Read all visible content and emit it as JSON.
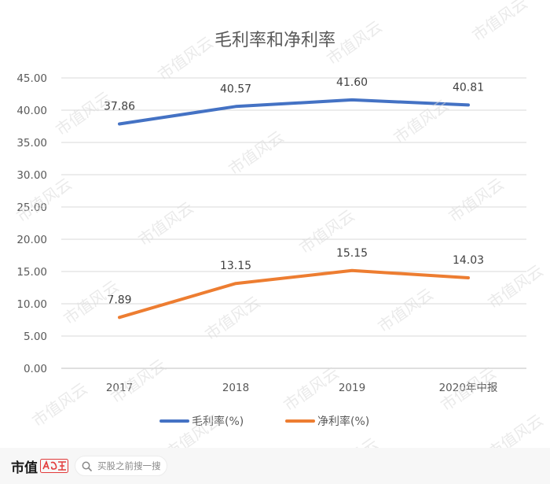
{
  "chart_data": {
    "type": "line",
    "title": "毛利率和净利率",
    "categories": [
      "2017",
      "2018",
      "2019",
      "2020年中报"
    ],
    "series": [
      {
        "name": "毛利率(%)",
        "values": [
          37.86,
          40.57,
          41.6,
          40.81
        ],
        "color": "#4472c4"
      },
      {
        "name": "净利率(%)",
        "values": [
          7.89,
          13.15,
          15.15,
          14.03
        ],
        "color": "#ed7d31"
      }
    ],
    "data_labels": [
      [
        "37.86",
        "40.57",
        "41.60",
        "40.81"
      ],
      [
        "7.89",
        "13.15",
        "15.15",
        "14.03"
      ]
    ],
    "ylim": [
      0,
      45
    ],
    "yticks": [
      "0.00",
      "5.00",
      "10.00",
      "15.00",
      "20.00",
      "25.00",
      "30.00",
      "35.00",
      "40.00",
      "45.00"
    ],
    "grid": true,
    "legend": "bottom",
    "xlabel": "",
    "ylabel": ""
  },
  "watermark": {
    "text": "市值风云",
    "color": "#d9d9d9"
  },
  "footer": {
    "brand": "市值",
    "search_placeholder": "买股之前搜一搜",
    "logo_color": "#e23b3b"
  }
}
